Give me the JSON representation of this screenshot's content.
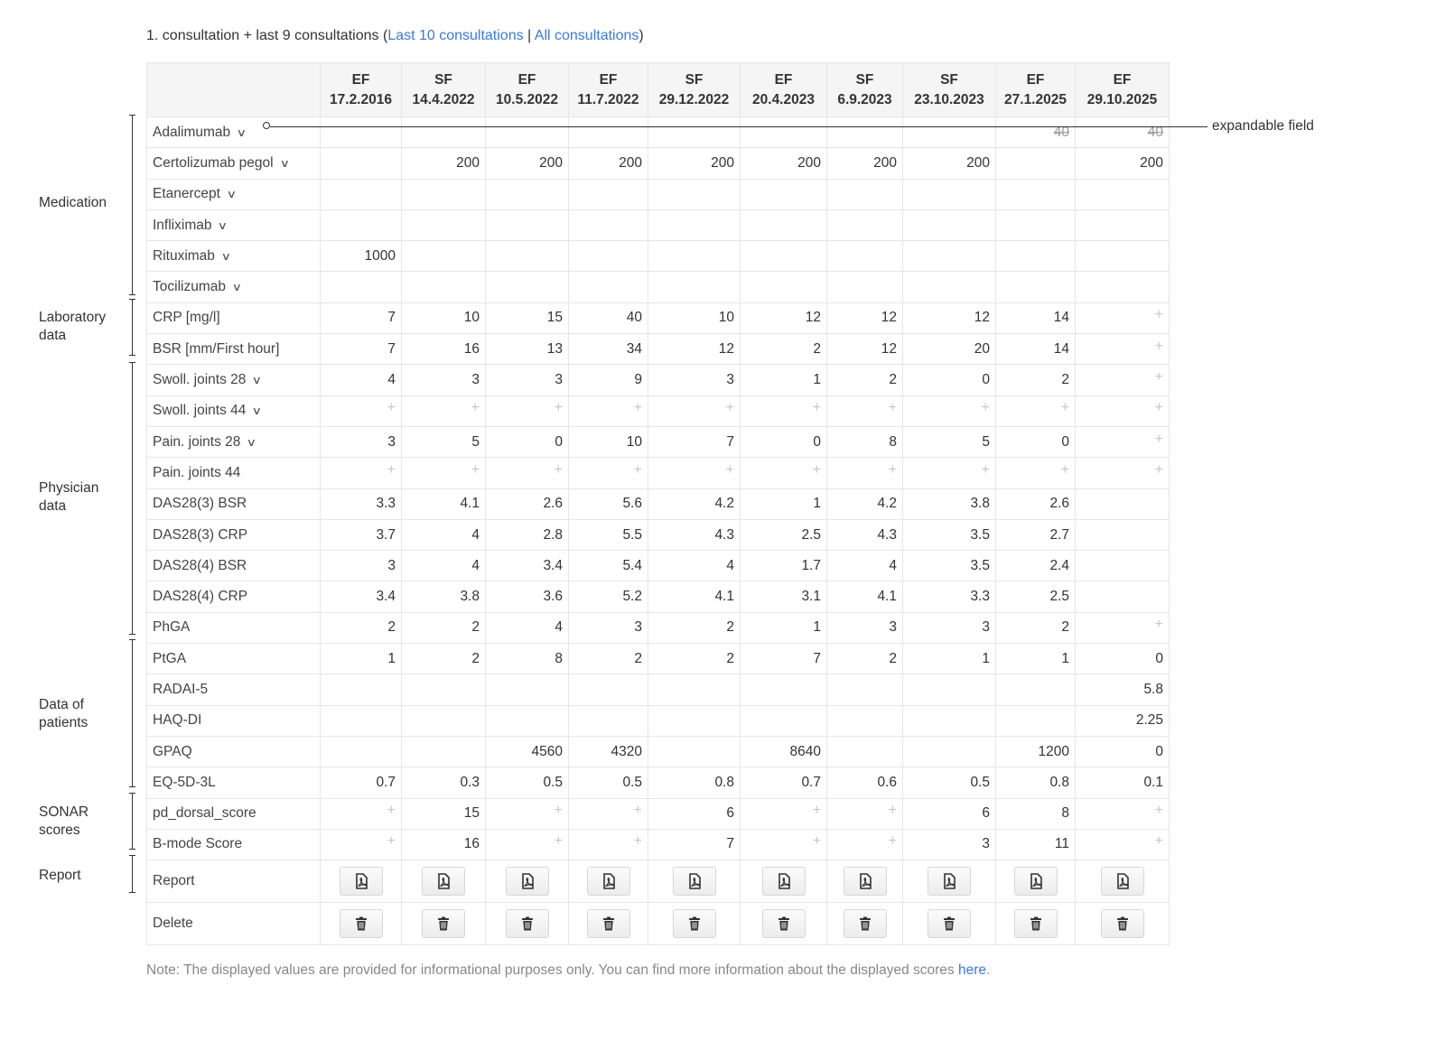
{
  "header": {
    "prefix": "1. consultation + last 9 consultations (",
    "link_last10": "Last 10 consultations",
    "separator": " | ",
    "link_all": "All consultations",
    "suffix": ")"
  },
  "columns": [
    {
      "type": "EF",
      "date": "17.2.2016"
    },
    {
      "type": "SF",
      "date": "14.4.2022"
    },
    {
      "type": "EF",
      "date": "10.5.2022"
    },
    {
      "type": "EF",
      "date": "11.7.2022"
    },
    {
      "type": "SF",
      "date": "29.12.2022"
    },
    {
      "type": "EF",
      "date": "20.4.2023"
    },
    {
      "type": "SF",
      "date": "6.9.2023"
    },
    {
      "type": "SF",
      "date": "23.10.2023"
    },
    {
      "type": "EF",
      "date": "27.1.2025"
    },
    {
      "type": "EF",
      "date": "29.10.2025"
    }
  ],
  "rows": [
    {
      "label": "Adalimumab",
      "expandable": true,
      "values": [
        "",
        "",
        "",
        "",
        "",
        "",
        "",
        "",
        "40",
        "40"
      ],
      "strike": true
    },
    {
      "label": "Certolizumab pegol",
      "expandable": true,
      "values": [
        "",
        "200",
        "200",
        "200",
        "200",
        "200",
        "200",
        "200",
        "",
        "200"
      ]
    },
    {
      "label": "Etanercept",
      "expandable": true,
      "values": [
        "",
        "",
        "",
        "",
        "",
        "",
        "",
        "",
        "",
        ""
      ]
    },
    {
      "label": "Infliximab",
      "expandable": true,
      "values": [
        "",
        "",
        "",
        "",
        "",
        "",
        "",
        "",
        "",
        ""
      ]
    },
    {
      "label": "Rituximab",
      "expandable": true,
      "values": [
        "1000",
        "",
        "",
        "",
        "",
        "",
        "",
        "",
        "",
        ""
      ]
    },
    {
      "label": "Tocilizumab",
      "expandable": true,
      "values": [
        "",
        "",
        "",
        "",
        "",
        "",
        "",
        "",
        "",
        ""
      ]
    },
    {
      "label": "CRP [mg/l]",
      "values": [
        "7",
        "10",
        "15",
        "40",
        "10",
        "12",
        "12",
        "12",
        "14",
        "+"
      ]
    },
    {
      "label": "BSR [mm/First hour]",
      "values": [
        "7",
        "16",
        "13",
        "34",
        "12",
        "2",
        "12",
        "20",
        "14",
        "+"
      ]
    },
    {
      "label": "Swoll. joints 28",
      "expandable": true,
      "values": [
        "4",
        "3",
        "3",
        "9",
        "3",
        "1",
        "2",
        "0",
        "2",
        "+"
      ]
    },
    {
      "label": "Swoll. joints 44",
      "expandable": true,
      "values": [
        "+",
        "+",
        "+",
        "+",
        "+",
        "+",
        "+",
        "+",
        "+",
        "+"
      ]
    },
    {
      "label": "Pain. joints 28",
      "expandable": true,
      "values": [
        "3",
        "5",
        "0",
        "10",
        "7",
        "0",
        "8",
        "5",
        "0",
        "+"
      ]
    },
    {
      "label": "Pain. joints 44",
      "values": [
        "+",
        "+",
        "+",
        "+",
        "+",
        "+",
        "+",
        "+",
        "+",
        "+"
      ]
    },
    {
      "label": "DAS28(3) BSR",
      "values": [
        "3.3",
        "4.1",
        "2.6",
        "5.6",
        "4.2",
        "1",
        "4.2",
        "3.8",
        "2.6",
        ""
      ]
    },
    {
      "label": "DAS28(3) CRP",
      "values": [
        "3.7",
        "4",
        "2.8",
        "5.5",
        "4.3",
        "2.5",
        "4.3",
        "3.5",
        "2.7",
        ""
      ]
    },
    {
      "label": "DAS28(4) BSR",
      "values": [
        "3",
        "4",
        "3.4",
        "5.4",
        "4",
        "1.7",
        "4",
        "3.5",
        "2.4",
        ""
      ]
    },
    {
      "label": "DAS28(4) CRP",
      "values": [
        "3.4",
        "3.8",
        "3.6",
        "5.2",
        "4.1",
        "3.1",
        "4.1",
        "3.3",
        "2.5",
        ""
      ]
    },
    {
      "label": "PhGA",
      "values": [
        "2",
        "2",
        "4",
        "3",
        "2",
        "1",
        "3",
        "3",
        "2",
        "+"
      ]
    },
    {
      "label": "PtGA",
      "values": [
        "1",
        "2",
        "8",
        "2",
        "2",
        "7",
        "2",
        "1",
        "1",
        "0"
      ]
    },
    {
      "label": "RADAI-5",
      "values": [
        "",
        "",
        "",
        "",
        "",
        "",
        "",
        "",
        "",
        "5.8"
      ]
    },
    {
      "label": "HAQ-DI",
      "values": [
        "",
        "",
        "",
        "",
        "",
        "",
        "",
        "",
        "",
        "2.25"
      ]
    },
    {
      "label": "GPAQ",
      "values": [
        "",
        "",
        "4560",
        "4320",
        "",
        "8640",
        "",
        "",
        "1200",
        "0"
      ]
    },
    {
      "label": "EQ-5D-3L",
      "values": [
        "0.7",
        "0.3",
        "0.5",
        "0.5",
        "0.8",
        "0.7",
        "0.6",
        "0.5",
        "0.8",
        "0.1"
      ]
    },
    {
      "label": "pd_dorsal_score",
      "values": [
        "+",
        "15",
        "+",
        "+",
        "6",
        "+",
        "+",
        "6",
        "8",
        "+"
      ]
    },
    {
      "label": "B-mode Score",
      "values": [
        "+",
        "16",
        "+",
        "+",
        "7",
        "+",
        "+",
        "3",
        "11",
        "+"
      ]
    }
  ],
  "report_row": {
    "label": "Report"
  },
  "delete_row": {
    "label": "Delete"
  },
  "groups": [
    {
      "label": "Medication"
    },
    {
      "label": "Laboratory data"
    },
    {
      "label": "Physician data"
    },
    {
      "label": "Data of patients"
    },
    {
      "label": "SONAR scores"
    },
    {
      "label": "Report"
    }
  ],
  "annotation": {
    "text": "expandable field"
  },
  "note": {
    "text": "Note: The displayed values are provided for informational purposes only. You can find more information about the displayed scores ",
    "link": "here",
    "end": "."
  },
  "icons": {
    "chevron": "chevron-down-icon",
    "pdf": "pdf-icon",
    "trash": "trash-icon"
  }
}
